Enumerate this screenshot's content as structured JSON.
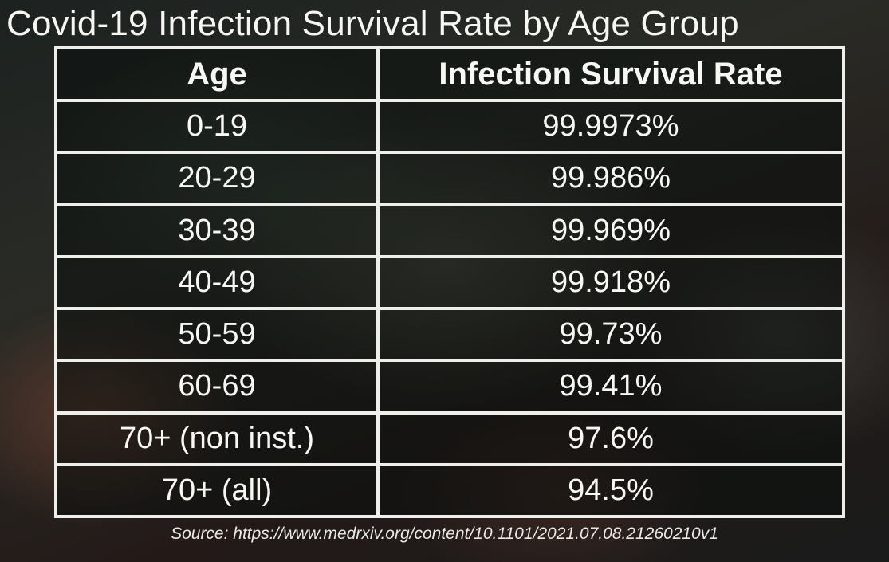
{
  "chart_data": {
    "type": "table",
    "title": "Covid-19 Infection Survival Rate by Age Group",
    "columns": [
      "Age",
      "Infection Survival Rate"
    ],
    "rows": [
      {
        "age": "0-19",
        "rate": "99.9973%"
      },
      {
        "age": "20-29",
        "rate": "99.986%"
      },
      {
        "age": "30-39",
        "rate": "99.969%"
      },
      {
        "age": "40-49",
        "rate": "99.918%"
      },
      {
        "age": "50-59",
        "rate": "99.73%"
      },
      {
        "age": "60-69",
        "rate": "99.41%"
      },
      {
        "age": "70+ (non inst.)",
        "rate": "97.6%"
      },
      {
        "age": "70+ (all)",
        "rate": "94.5%"
      }
    ],
    "source": "Source: https://www.medrxiv.org/content/10.1101/2021.07.08.21260210v1"
  }
}
